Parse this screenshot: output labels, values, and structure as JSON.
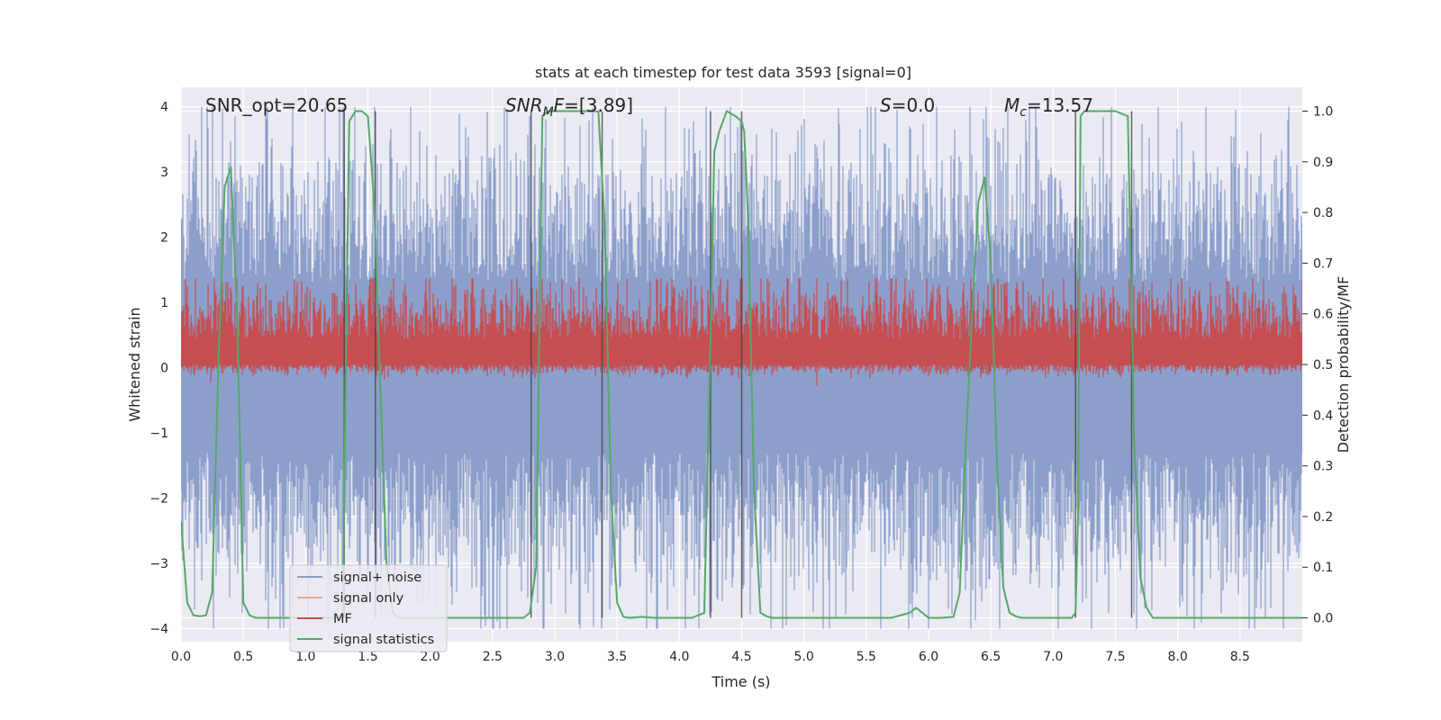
{
  "chart_data": {
    "type": "line",
    "title": "stats at each timestep for test data 3593 [signal=0]",
    "xlabel": "Time (s)",
    "ylabel_left": "Whitened strain",
    "ylabel_right": "Detection probability/MF",
    "xlim": [
      0,
      9.0
    ],
    "ylim_left": [
      -4.2,
      4.3
    ],
    "ylim_right": [
      -0.047,
      1.047
    ],
    "xticks": [
      "0.0",
      "0.5",
      "1.0",
      "1.5",
      "2.0",
      "2.5",
      "3.0",
      "3.5",
      "4.0",
      "4.5",
      "5.0",
      "5.5",
      "6.0",
      "6.5",
      "7.0",
      "7.5",
      "8.0",
      "8.5"
    ],
    "yticks_left": [
      "−4",
      "−3",
      "−2",
      "−1",
      "0",
      "1",
      "2",
      "3",
      "4"
    ],
    "yticks_right": [
      "0.0",
      "0.1",
      "0.2",
      "0.3",
      "0.4",
      "0.5",
      "0.6",
      "0.7",
      "0.8",
      "0.9",
      "1.0"
    ],
    "grid": true,
    "legend_position": "lower-left",
    "annotations": {
      "snr_opt": "SNR_opt=20.65",
      "snr_mf_base": "SNR",
      "snr_mf_sub": "M",
      "snr_mf_rest": "F",
      "snr_mf_value": "=[3.89]",
      "s_var": "S",
      "s_value": "=0.0",
      "mc_var": "M",
      "mc_sub": "c",
      "mc_value": "=13.57"
    },
    "series": [
      {
        "name": "signal+ noise",
        "color": "#8c9fcb",
        "approx_range": [
          -4.0,
          4.0
        ]
      },
      {
        "name": "signal only",
        "color": "#e8a88c",
        "values": []
      },
      {
        "name": "MF",
        "color": "#c44e52",
        "approx_range": [
          0.0,
          1.0
        ]
      },
      {
        "name": "signal statistics",
        "color": "#55a868",
        "x": [
          0.0,
          0.05,
          0.1,
          0.15,
          0.2,
          0.25,
          0.3,
          0.35,
          0.4,
          0.45,
          0.5,
          0.55,
          0.6,
          0.7,
          0.8,
          0.9,
          1.0,
          1.1,
          1.2,
          1.25,
          1.3,
          1.32,
          1.35,
          1.4,
          1.45,
          1.5,
          1.55,
          1.6,
          1.65,
          1.7,
          1.75,
          1.8,
          2.0,
          2.5,
          2.75,
          2.8,
          2.85,
          2.9,
          2.95,
          3.0,
          3.1,
          3.2,
          3.3,
          3.35,
          3.4,
          3.45,
          3.5,
          3.55,
          3.6,
          3.7,
          3.8,
          3.9,
          4.0,
          4.1,
          4.2,
          4.25,
          4.28,
          4.32,
          4.38,
          4.45,
          4.5,
          4.52,
          4.55,
          4.6,
          4.65,
          4.7,
          4.75,
          4.8,
          5.0,
          5.5,
          5.7,
          5.85,
          5.9,
          5.95,
          6.0,
          6.1,
          6.2,
          6.25,
          6.3,
          6.35,
          6.4,
          6.45,
          6.5,
          6.55,
          6.6,
          6.65,
          6.7,
          6.75,
          6.8,
          7.0,
          7.15,
          7.18,
          7.2,
          7.22,
          7.25,
          7.3,
          7.4,
          7.5,
          7.6,
          7.65,
          7.7,
          7.75,
          7.8,
          8.0,
          8.5,
          9.0
        ],
        "y": [
          0.19,
          0.03,
          0.005,
          0.003,
          0.005,
          0.05,
          0.5,
          0.85,
          0.89,
          0.6,
          0.03,
          0.005,
          0.0,
          0.0,
          0.0,
          0.0,
          0.0,
          0.0,
          0.0,
          0.0,
          0.0,
          0.45,
          0.98,
          1.0,
          1.0,
          0.99,
          0.82,
          0.45,
          0.1,
          0.01,
          0.0,
          0.0,
          0.0,
          0.0,
          0.0,
          0.01,
          0.1,
          0.99,
          1.0,
          1.0,
          1.0,
          1.0,
          1.0,
          0.999,
          0.78,
          0.25,
          0.03,
          0.002,
          0.0,
          0.002,
          0.0,
          0.0,
          0.0,
          0.0,
          0.01,
          0.55,
          0.92,
          0.96,
          1.0,
          0.99,
          0.98,
          0.96,
          0.8,
          0.25,
          0.01,
          0.003,
          0.0,
          0.0,
          0.0,
          0.0,
          0.0,
          0.01,
          0.02,
          0.01,
          0.0,
          0.0,
          0.002,
          0.05,
          0.35,
          0.6,
          0.82,
          0.87,
          0.7,
          0.3,
          0.06,
          0.01,
          0.003,
          0.0,
          0.0,
          0.0,
          0.0,
          0.01,
          0.2,
          0.99,
          1.0,
          1.0,
          1.0,
          1.0,
          0.99,
          0.35,
          0.08,
          0.02,
          0.0,
          0.0,
          0.0,
          0.0
        ]
      }
    ],
    "vertical_markers_x": [
      1.31,
      1.56,
      2.81,
      3.38,
      4.25,
      4.5,
      7.18,
      7.63
    ]
  }
}
